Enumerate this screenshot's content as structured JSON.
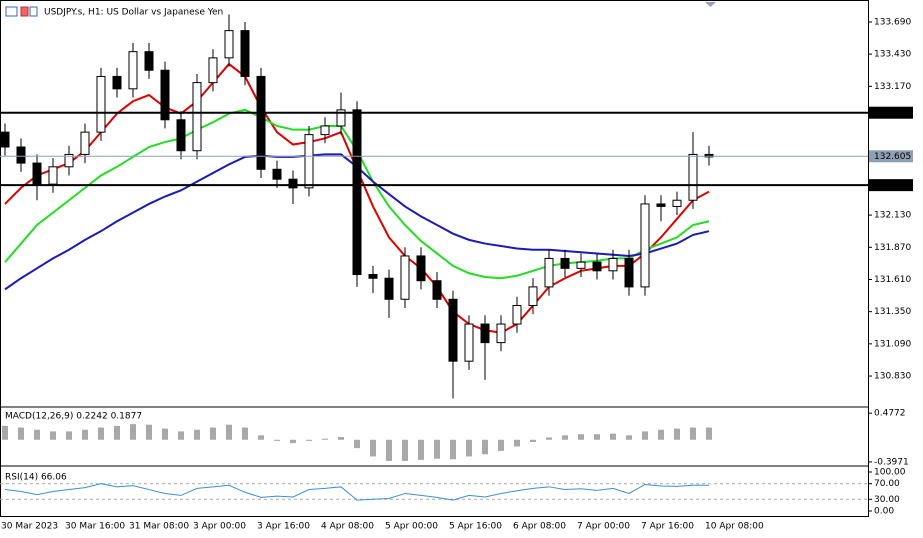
{
  "chart_data": [
    {
      "type": "candlestick",
      "title": "USDJPY.s, H1:  US Dollar vs Japanese Yen",
      "categories": [
        "30 Mar 2023",
        null,
        null,
        null,
        "30 Mar 16:00",
        null,
        null,
        null,
        "31 Mar 08:00",
        null,
        null,
        null,
        "3 Apr 00:00",
        null,
        null,
        null,
        "3 Apr 16:00",
        null,
        null,
        null,
        "4 Apr 08:00",
        null,
        null,
        null,
        "5 Apr 00:00",
        null,
        null,
        null,
        "5 Apr 16:00",
        null,
        null,
        null,
        "6 Apr 08:00",
        null,
        null,
        null,
        "7 Apr 00:00",
        null,
        null,
        null,
        "7 Apr 16:00",
        null,
        null,
        null,
        "10 Apr 08:00"
      ],
      "open": [
        132.8,
        132.68,
        132.55,
        132.38,
        132.52,
        132.62,
        132.8,
        133.25,
        133.15,
        133.45,
        133.3,
        132.9,
        132.65,
        133.2,
        133.4,
        133.62,
        133.25,
        132.5,
        132.42,
        132.35,
        132.78,
        132.85,
        132.98,
        131.65,
        131.62,
        131.45,
        131.8,
        131.6,
        131.45,
        130.95,
        131.25,
        131.1,
        131.25,
        131.4,
        131.55,
        131.78,
        131.7,
        131.75,
        131.68,
        131.78,
        131.55,
        132.22,
        132.2,
        132.25,
        132.62
      ],
      "high": [
        132.87,
        132.75,
        132.62,
        132.59,
        132.69,
        132.87,
        133.32,
        133.32,
        133.52,
        133.52,
        133.37,
        132.97,
        133.27,
        133.47,
        133.75,
        133.69,
        133.32,
        132.57,
        132.49,
        132.85,
        132.92,
        133.12,
        133.05,
        131.72,
        131.69,
        131.87,
        131.87,
        131.67,
        131.52,
        131.32,
        131.32,
        131.32,
        131.47,
        131.62,
        131.85,
        131.85,
        131.82,
        131.82,
        131.85,
        131.85,
        132.29,
        132.29,
        132.32,
        132.8,
        132.69
      ],
      "low": [
        132.61,
        132.48,
        132.25,
        132.31,
        132.45,
        132.55,
        132.73,
        133.08,
        133.08,
        133.23,
        132.83,
        132.58,
        132.58,
        133.13,
        133.33,
        133.18,
        132.43,
        132.35,
        132.22,
        132.28,
        132.71,
        132.78,
        131.55,
        131.5,
        131.3,
        131.38,
        131.53,
        131.38,
        130.65,
        130.88,
        130.8,
        131.03,
        131.18,
        131.33,
        131.48,
        131.63,
        131.63,
        131.61,
        131.61,
        131.48,
        131.48,
        132.08,
        132.13,
        132.18,
        132.53
      ],
      "close": [
        132.68,
        132.55,
        132.38,
        132.52,
        132.62,
        132.8,
        133.25,
        133.15,
        133.45,
        133.3,
        132.9,
        132.65,
        133.2,
        133.4,
        133.62,
        133.25,
        132.5,
        132.42,
        132.35,
        132.78,
        132.85,
        132.98,
        131.65,
        131.62,
        131.45,
        131.8,
        131.6,
        131.45,
        130.95,
        131.25,
        131.1,
        131.25,
        131.4,
        131.55,
        131.78,
        131.7,
        131.75,
        131.68,
        131.78,
        131.55,
        132.22,
        132.2,
        132.25,
        132.62,
        132.6
      ],
      "series": [
        {
          "color": "#e00000",
          "values": [
            132.22,
            132.35,
            132.45,
            132.5,
            132.55,
            132.65,
            132.8,
            132.95,
            133.05,
            133.1,
            133.0,
            132.95,
            133.05,
            133.2,
            133.35,
            133.25,
            133.0,
            132.8,
            132.7,
            132.72,
            132.75,
            132.8,
            132.5,
            132.2,
            131.95,
            131.8,
            131.7,
            131.55,
            131.35,
            131.25,
            131.2,
            131.18,
            131.25,
            131.4,
            131.55,
            131.62,
            131.68,
            131.7,
            131.72,
            131.72,
            131.82,
            131.95,
            132.1,
            132.25,
            132.32
          ]
        },
        {
          "color": "#22dd22",
          "values": [
            131.75,
            131.9,
            132.05,
            132.15,
            132.25,
            132.35,
            132.45,
            132.52,
            132.6,
            132.68,
            132.72,
            132.75,
            132.82,
            132.88,
            132.95,
            132.98,
            132.92,
            132.85,
            132.82,
            132.82,
            132.85,
            132.85,
            132.65,
            132.4,
            132.2,
            132.05,
            131.92,
            131.82,
            131.72,
            131.66,
            131.63,
            131.62,
            131.64,
            131.68,
            131.72,
            131.74,
            131.75,
            131.76,
            131.78,
            131.78,
            131.85,
            131.9,
            131.95,
            132.05,
            132.08
          ]
        },
        {
          "color": "#1a1ab8",
          "values": [
            131.53,
            131.62,
            131.7,
            131.78,
            131.85,
            131.93,
            132.0,
            132.08,
            132.15,
            132.22,
            132.28,
            132.33,
            132.4,
            132.47,
            132.54,
            132.6,
            132.61,
            132.6,
            132.6,
            132.61,
            132.62,
            132.62,
            132.52,
            132.4,
            132.3,
            132.2,
            132.12,
            132.05,
            131.98,
            131.93,
            131.9,
            131.88,
            131.86,
            131.85,
            131.85,
            131.84,
            131.83,
            131.82,
            131.81,
            131.8,
            131.82,
            131.86,
            131.9,
            131.97,
            132.0
          ]
        }
      ],
      "levels": [
        132.957,
        132.372
      ],
      "current_price": 132.605,
      "ylim": [
        130.588,
        133.827
      ],
      "yticks": [
        {
          "value": 133.69,
          "label": "133.690"
        },
        {
          "value": 133.43,
          "label": "133.430"
        },
        {
          "value": 133.17,
          "label": "133.170"
        },
        {
          "value": 132.13,
          "label": "132.130"
        },
        {
          "value": 131.87,
          "label": "131.870"
        },
        {
          "value": 131.61,
          "label": "131.610"
        },
        {
          "value": 131.35,
          "label": "131.350"
        },
        {
          "value": 131.09,
          "label": "131.090"
        },
        {
          "value": 130.83,
          "label": "130.830"
        }
      ]
    },
    {
      "type": "bar",
      "title": "MACD(12,26,9) 0.2242 0.1877",
      "color": "#a8a8a8",
      "values": [
        0.25,
        0.22,
        0.18,
        0.15,
        0.15,
        0.18,
        0.22,
        0.25,
        0.28,
        0.27,
        0.2,
        0.15,
        0.18,
        0.22,
        0.27,
        0.22,
        0.08,
        -0.02,
        -0.06,
        -0.02,
        0.02,
        0.05,
        -0.15,
        -0.3,
        -0.38,
        -0.38,
        -0.36,
        -0.34,
        -0.35,
        -0.3,
        -0.26,
        -0.2,
        -0.12,
        -0.04,
        0.04,
        0.08,
        0.1,
        0.1,
        0.11,
        0.08,
        0.15,
        0.18,
        0.2,
        0.22,
        0.22
      ],
      "ylim": [
        -0.4529,
        0.5702
      ],
      "yticks": [
        0.4772,
        -0.3971
      ]
    },
    {
      "type": "line",
      "title": "RSI(14) 66.06",
      "color": "#3a8fd8",
      "values": [
        55,
        50,
        42,
        50,
        55,
        60,
        70,
        62,
        65,
        55,
        45,
        40,
        58,
        62,
        66,
        48,
        35,
        38,
        36,
        55,
        58,
        62,
        28,
        30,
        32,
        45,
        40,
        35,
        28,
        40,
        36,
        45,
        52,
        58,
        62,
        55,
        57,
        53,
        58,
        45,
        68,
        64,
        63,
        66,
        66.06
      ],
      "levels": [
        70,
        30
      ],
      "ylim": [
        -12.8,
        112.8
      ],
      "yticks": [
        {
          "value": 100,
          "label": "100.00"
        },
        {
          "value": 70,
          "label": "70.00"
        },
        {
          "value": 30,
          "label": "30.00"
        },
        {
          "value": 0,
          "label": "0.00"
        }
      ]
    }
  ]
}
